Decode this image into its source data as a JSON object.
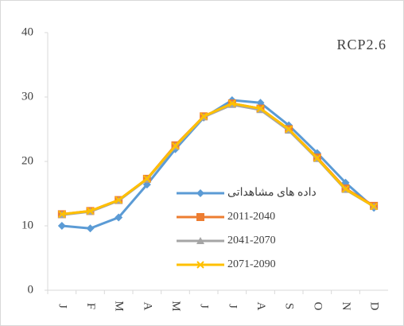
{
  "chart_data": {
    "type": "line",
    "annotation": "RCP2.6",
    "categories": [
      "J",
      "F",
      "M",
      "A",
      "M",
      "J",
      "J",
      "A",
      "S",
      "O",
      "N",
      "D"
    ],
    "series": [
      {
        "name": "داده های مشاهداتی",
        "color": "#5b9bd5",
        "marker": "diamond",
        "values": [
          10.0,
          9.6,
          11.3,
          16.4,
          21.9,
          26.8,
          29.5,
          29.1,
          25.6,
          21.3,
          16.7,
          12.8
        ]
      },
      {
        "name": "2011-2040",
        "color": "#ed7d31",
        "marker": "square",
        "values": [
          11.8,
          12.3,
          14.0,
          17.3,
          22.5,
          27.0,
          29.0,
          28.2,
          25.0,
          20.6,
          15.8,
          13.1
        ]
      },
      {
        "name": "2041-2070",
        "color": "#a5a5a5",
        "marker": "triangle",
        "values": [
          11.7,
          12.2,
          13.9,
          17.2,
          22.3,
          26.9,
          28.8,
          28.0,
          24.8,
          20.4,
          15.6,
          13.0
        ]
      },
      {
        "name": "2071-2090",
        "color": "#ffc000",
        "marker": "x",
        "values": [
          11.8,
          12.3,
          14.0,
          17.3,
          22.4,
          27.0,
          29.0,
          28.2,
          25.0,
          20.5,
          15.7,
          13.0
        ]
      }
    ],
    "ylim": [
      0,
      40
    ],
    "yticks": [
      0,
      10,
      20,
      30,
      40
    ]
  }
}
